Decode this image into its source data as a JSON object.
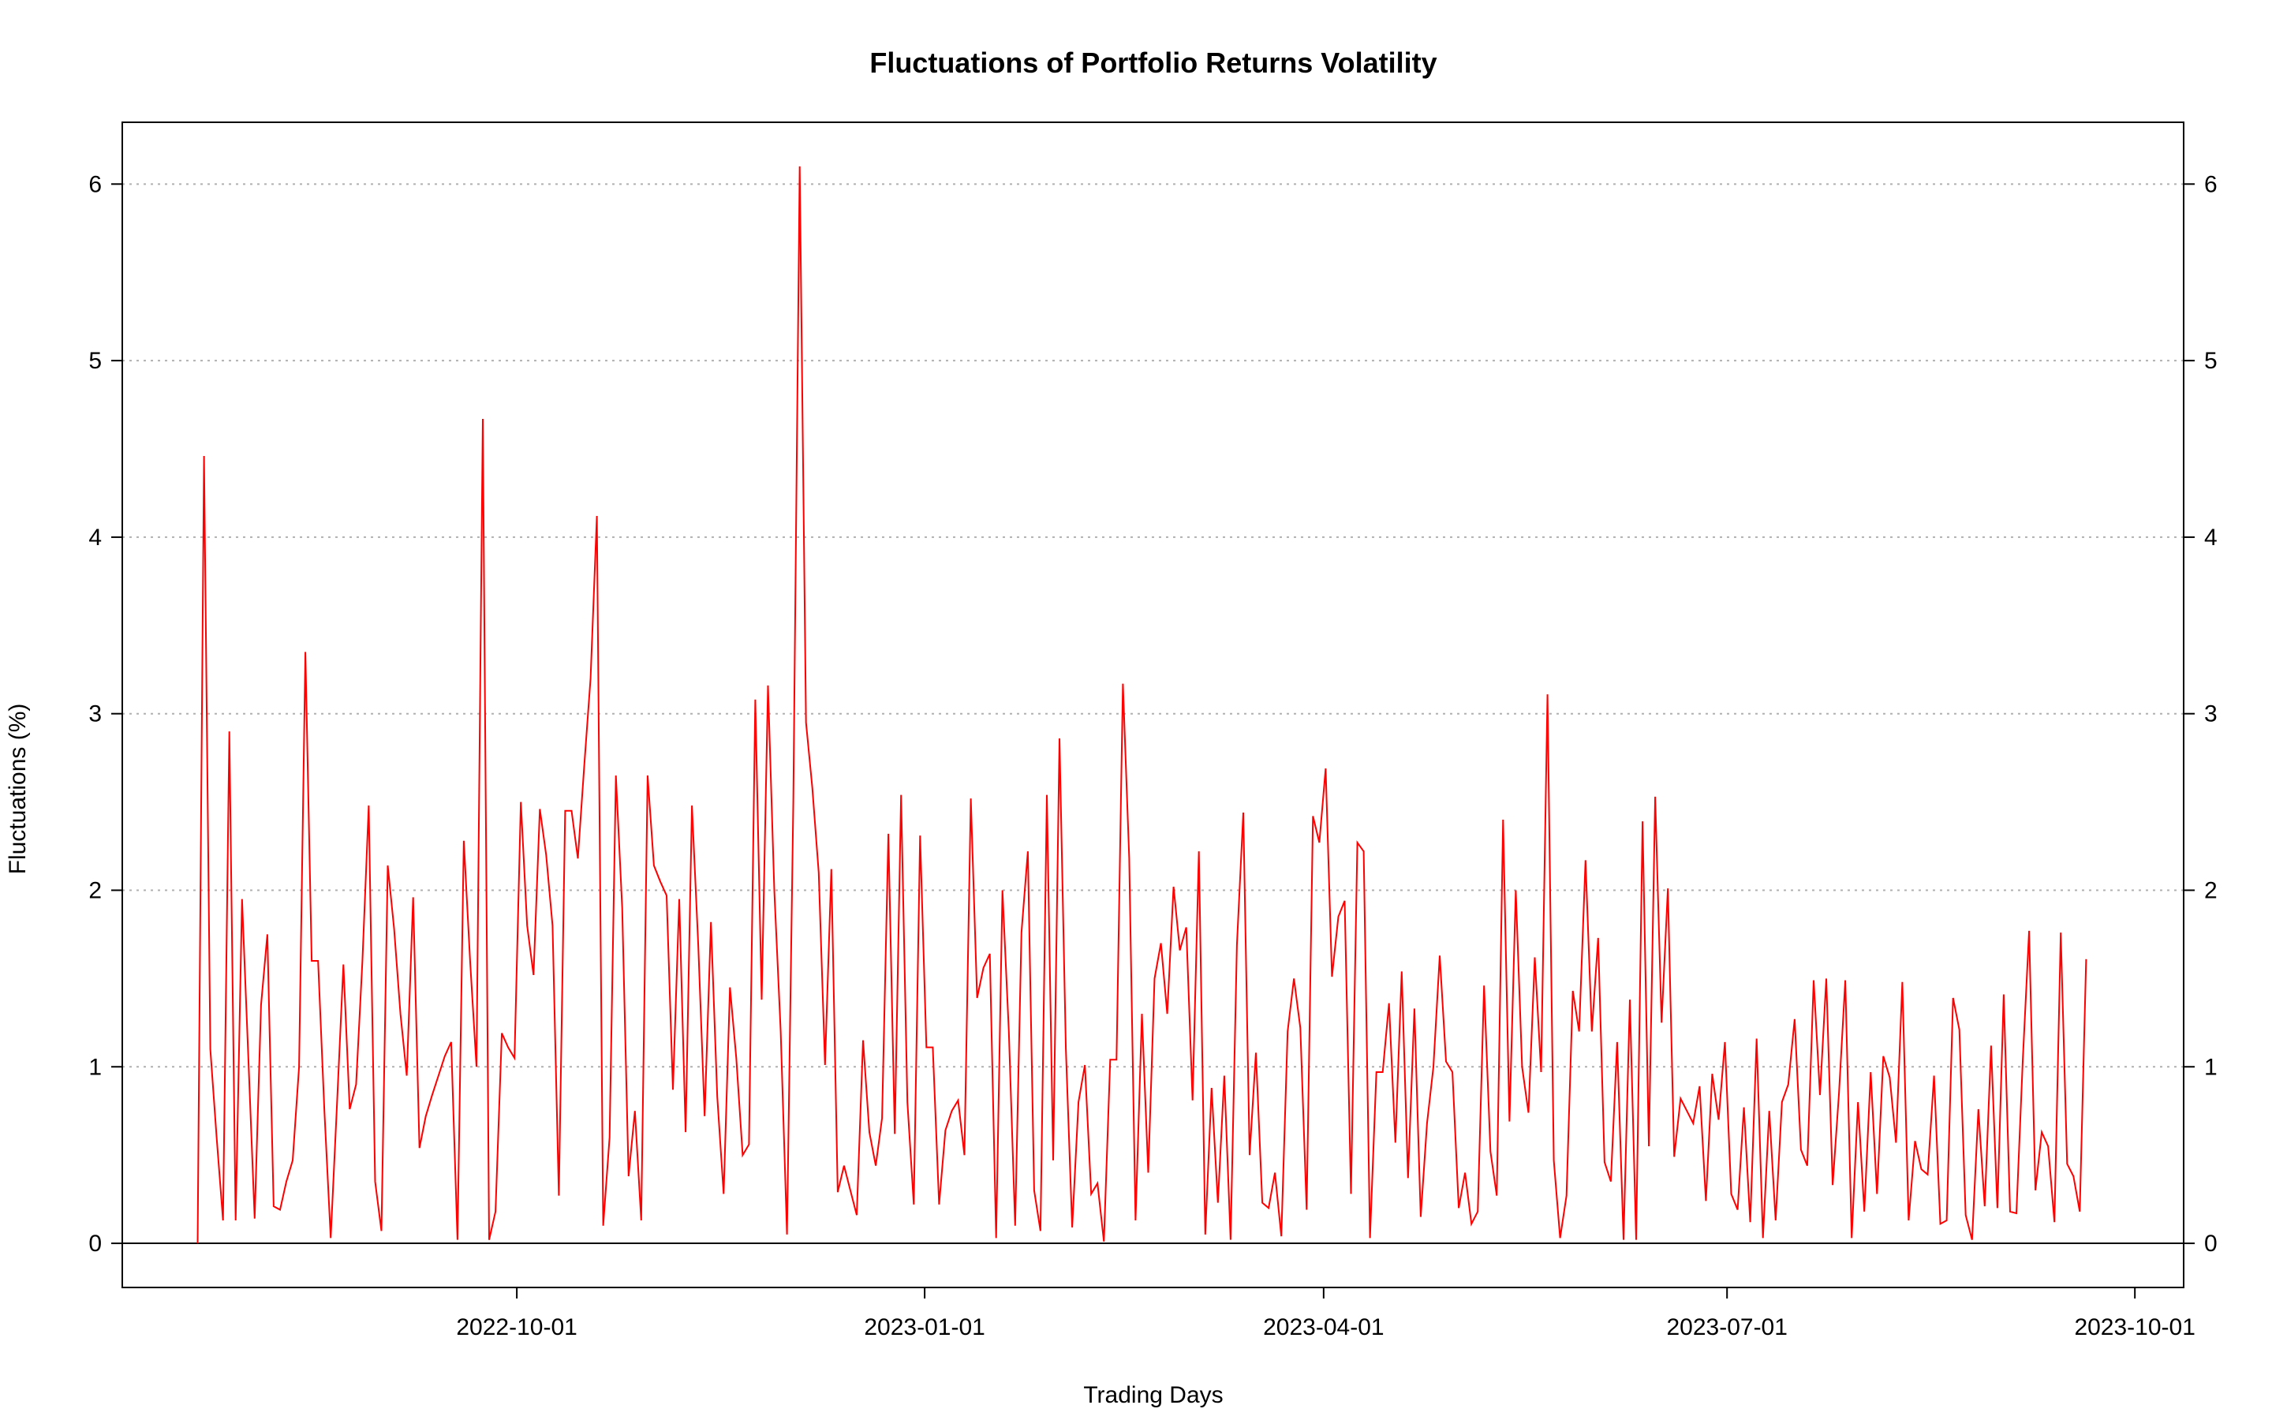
{
  "chart_data": {
    "type": "line",
    "title": "Fluctuations of Portfolio Returns Volatility",
    "xlabel": "Trading Days",
    "ylabel": "Fluctuations (%)",
    "ylim": [
      -0.25,
      6.35
    ],
    "x_range": [
      "2022-07-04",
      "2023-10-12"
    ],
    "x_ticks": [
      "2022-10-01",
      "2023-01-01",
      "2023-04-01",
      "2023-07-01",
      "2023-10-01"
    ],
    "y_ticks": [
      0,
      1,
      2,
      3,
      4,
      5,
      6
    ],
    "gridlines": "horizontal dotted",
    "baseline_y": 0,
    "line_color": "#ff0000",
    "series": [
      {
        "name": "Fluctuations",
        "start_date": "2022-07-21",
        "end_date": "2023-09-20",
        "values": [
          0.0,
          4.46,
          1.1,
          0.6,
          0.13,
          2.9,
          0.13,
          1.95,
          1.05,
          0.14,
          1.35,
          1.75,
          0.21,
          0.19,
          0.35,
          0.47,
          1.0,
          3.35,
          1.6,
          1.6,
          0.75,
          0.03,
          0.8,
          1.58,
          0.76,
          0.9,
          1.6,
          2.48,
          0.35,
          0.07,
          2.14,
          1.78,
          1.3,
          0.95,
          1.96,
          0.54,
          0.72,
          0.84,
          0.95,
          1.06,
          1.14,
          0.02,
          2.28,
          1.6,
          1.0,
          4.67,
          0.02,
          0.18,
          1.19,
          1.11,
          1.05,
          2.5,
          1.8,
          1.52,
          2.46,
          2.2,
          1.8,
          0.27,
          2.45,
          2.45,
          2.18,
          2.7,
          3.2,
          4.12,
          0.1,
          0.6,
          2.65,
          1.9,
          0.38,
          0.75,
          0.13,
          2.65,
          2.14,
          2.05,
          1.97,
          0.87,
          1.95,
          0.63,
          2.48,
          1.69,
          0.72,
          1.82,
          0.83,
          0.28,
          1.45,
          1.05,
          0.5,
          0.56,
          3.08,
          1.38,
          3.16,
          2.0,
          1.2,
          0.05,
          2.5,
          6.1,
          2.95,
          2.58,
          2.1,
          1.01,
          2.12,
          0.29,
          0.44,
          0.3,
          0.16,
          1.15,
          0.63,
          0.44,
          0.71,
          2.32,
          0.62,
          2.54,
          0.8,
          0.22,
          2.31,
          1.11,
          1.11,
          0.22,
          0.64,
          0.75,
          0.81,
          0.5,
          2.52,
          1.39,
          1.56,
          1.64,
          0.03,
          2.0,
          1.2,
          0.1,
          1.76,
          2.22,
          0.3,
          0.07,
          2.54,
          0.47,
          2.86,
          1.1,
          0.09,
          0.8,
          1.01,
          0.28,
          0.34,
          0.01,
          1.04,
          1.04,
          3.17,
          2.18,
          0.13,
          1.3,
          0.4,
          1.5,
          1.7,
          1.3,
          2.02,
          1.66,
          1.79,
          0.81,
          2.22,
          0.05,
          0.88,
          0.23,
          0.95,
          0.02,
          1.69,
          2.44,
          0.5,
          1.08,
          0.23,
          0.2,
          0.4,
          0.04,
          1.2,
          1.5,
          1.22,
          0.19,
          2.42,
          2.27,
          2.69,
          1.51,
          1.85,
          1.94,
          0.28,
          2.27,
          2.22,
          0.03,
          0.97,
          0.97,
          1.36,
          0.57,
          1.54,
          0.37,
          1.33,
          0.15,
          0.68,
          1.0,
          1.63,
          1.03,
          0.97,
          0.2,
          0.4,
          0.11,
          0.18,
          1.46,
          0.52,
          0.27,
          2.4,
          0.69,
          2.0,
          1.0,
          0.74,
          1.62,
          0.97,
          3.11,
          0.47,
          0.03,
          0.27,
          1.43,
          1.2,
          2.17,
          1.2,
          1.73,
          0.46,
          0.35,
          1.14,
          0.02,
          1.38,
          0.02,
          2.39,
          0.55,
          2.53,
          1.25,
          2.01,
          0.49,
          0.82,
          0.75,
          0.68,
          0.89,
          0.24,
          0.96,
          0.7,
          1.14,
          0.28,
          0.19,
          0.77,
          0.12,
          1.16,
          0.03,
          0.75,
          0.13,
          0.8,
          0.9,
          1.27,
          0.53,
          0.44,
          1.49,
          0.84,
          1.5,
          0.33,
          0.85,
          1.49,
          0.03,
          0.8,
          0.18,
          0.97,
          0.28,
          1.06,
          0.94,
          0.57,
          1.48,
          0.13,
          0.58,
          0.42,
          0.39,
          0.95,
          0.11,
          0.13,
          1.39,
          1.21,
          0.16,
          0.02,
          0.76,
          0.21,
          1.12,
          0.2,
          1.41,
          0.18,
          0.17,
          1.03,
          1.77,
          0.3,
          0.63,
          0.55,
          0.12,
          1.76,
          0.45,
          0.38,
          0.18,
          1.61
        ]
      }
    ]
  }
}
